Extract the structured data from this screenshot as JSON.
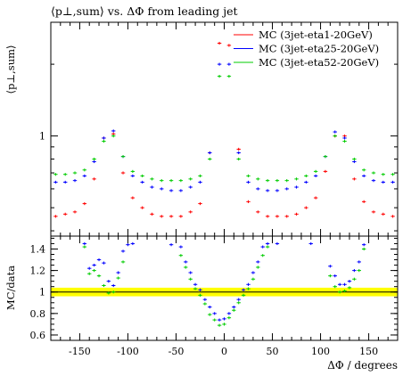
{
  "chart_data": [
    {
      "type": "scatter",
      "title": "⟨p⊥,sum⟩ vs. ΔΦ from leading jet",
      "ylabel": "⟨p⊥,sum⟩",
      "xlabel": "",
      "y_scale": "log",
      "ylim": [
        0.38,
        3.0
      ],
      "xlim": [
        -180,
        180
      ],
      "yticks": [
        {
          "value": 1,
          "label": "1"
        }
      ],
      "legend_position": "top-right",
      "x": [
        -175,
        -165,
        -155,
        -145,
        -135,
        -125,
        -115,
        -105,
        -95,
        -85,
        -75,
        -65,
        -55,
        -45,
        -35,
        -25,
        -15,
        -5,
        5,
        15,
        25,
        35,
        45,
        55,
        65,
        75,
        85,
        95,
        105,
        115,
        125,
        135,
        145,
        155,
        165,
        175
      ],
      "series": [
        {
          "name": "MC (3jet-eta1-20GeV)",
          "color": "#ff0000",
          "values": [
            0.46,
            0.47,
            0.48,
            0.52,
            0.66,
            0.98,
            1.02,
            0.7,
            0.55,
            0.5,
            0.47,
            0.46,
            0.46,
            0.46,
            0.48,
            0.52,
            0.85,
            2.45,
            2.4,
            0.88,
            0.53,
            0.48,
            0.46,
            0.46,
            0.46,
            0.47,
            0.5,
            0.55,
            0.71,
            1.0,
            1.0,
            0.66,
            0.53,
            0.48,
            0.47,
            0.46
          ]
        },
        {
          "name": "MC (3jet-eta25-20GeV)",
          "color": "#0000ff",
          "values": [
            0.64,
            0.64,
            0.65,
            0.68,
            0.78,
            0.98,
            1.05,
            0.82,
            0.68,
            0.64,
            0.61,
            0.6,
            0.59,
            0.59,
            0.61,
            0.64,
            0.85,
            2.0,
            2.0,
            0.85,
            0.64,
            0.6,
            0.59,
            0.59,
            0.6,
            0.61,
            0.64,
            0.68,
            0.82,
            1.04,
            0.98,
            0.78,
            0.68,
            0.65,
            0.64,
            0.64
          ]
        },
        {
          "name": "MC (3jet-eta52-20GeV)",
          "color": "#00cc00",
          "values": [
            0.69,
            0.69,
            0.7,
            0.72,
            0.8,
            0.95,
            1.0,
            0.82,
            0.71,
            0.68,
            0.66,
            0.65,
            0.65,
            0.65,
            0.66,
            0.68,
            0.8,
            1.78,
            1.78,
            0.8,
            0.68,
            0.66,
            0.65,
            0.65,
            0.65,
            0.66,
            0.68,
            0.71,
            0.82,
            1.0,
            0.95,
            0.8,
            0.72,
            0.7,
            0.69,
            0.69
          ]
        }
      ]
    },
    {
      "type": "scatter",
      "title": "",
      "ylabel": "MC/data",
      "xlabel": "ΔΦ / degrees",
      "ylim": [
        0.55,
        1.52
      ],
      "xlim": [
        -180,
        180
      ],
      "grid": false,
      "xticks": [
        {
          "value": -150,
          "label": "-150"
        },
        {
          "value": -100,
          "label": "-100"
        },
        {
          "value": -50,
          "label": "-50"
        },
        {
          "value": 0,
          "label": "0"
        },
        {
          "value": 50,
          "label": "50"
        },
        {
          "value": 100,
          "label": "100"
        },
        {
          "value": 150,
          "label": "150"
        }
      ],
      "yticks": [
        {
          "value": 0.6,
          "label": "0.6"
        },
        {
          "value": 0.8,
          "label": "0.8"
        },
        {
          "value": 1.0,
          "label": "1"
        },
        {
          "value": 1.2,
          "label": "1.2"
        },
        {
          "value": 1.4,
          "label": "1.4"
        }
      ],
      "reference_line": 1.0,
      "data_uncertainty_band": [
        0.96,
        1.04
      ],
      "band_color": "#ffff00",
      "series": [
        {
          "name": "MC (3jet-eta25-20GeV)",
          "color": "#0000ff",
          "x": [
            -145,
            -140,
            -135,
            -130,
            -125,
            -120,
            -115,
            -110,
            -105,
            -100,
            -95,
            -55,
            -45,
            -40,
            -35,
            -30,
            -25,
            -20,
            -15,
            -10,
            -5,
            0,
            5,
            10,
            15,
            20,
            25,
            30,
            35,
            40,
            45,
            55,
            90,
            110,
            115,
            120,
            125,
            130,
            135,
            140,
            145
          ],
          "values": [
            1.45,
            1.22,
            1.25,
            1.3,
            1.27,
            1.1,
            1.06,
            1.18,
            1.38,
            1.44,
            1.45,
            1.44,
            1.42,
            1.28,
            1.18,
            1.07,
            1.02,
            0.93,
            0.86,
            0.8,
            0.74,
            0.75,
            0.8,
            0.86,
            0.93,
            1.02,
            1.07,
            1.18,
            1.28,
            1.42,
            1.45,
            1.45,
            1.45,
            1.24,
            1.15,
            1.07,
            1.07,
            1.1,
            1.2,
            1.28,
            1.44
          ]
        },
        {
          "name": "MC (3jet-eta52-20GeV)",
          "color": "#00cc00",
          "x": [
            -145,
            -140,
            -135,
            -130,
            -125,
            -120,
            -115,
            -110,
            -105,
            -45,
            -40,
            -35,
            -30,
            -25,
            -20,
            -15,
            -10,
            -5,
            0,
            5,
            10,
            15,
            20,
            25,
            30,
            35,
            40,
            45,
            110,
            115,
            120,
            125,
            130,
            135,
            140,
            145
          ],
          "values": [
            1.42,
            1.17,
            1.2,
            1.15,
            1.06,
            0.99,
            1.0,
            1.13,
            1.28,
            1.34,
            1.23,
            1.12,
            1.03,
            0.97,
            0.89,
            0.79,
            0.74,
            0.69,
            0.7,
            0.76,
            0.83,
            0.9,
            0.97,
            1.03,
            1.12,
            1.23,
            1.34,
            1.42,
            1.15,
            1.05,
            1.0,
            1.01,
            1.04,
            1.12,
            1.2,
            1.4
          ]
        }
      ]
    }
  ]
}
